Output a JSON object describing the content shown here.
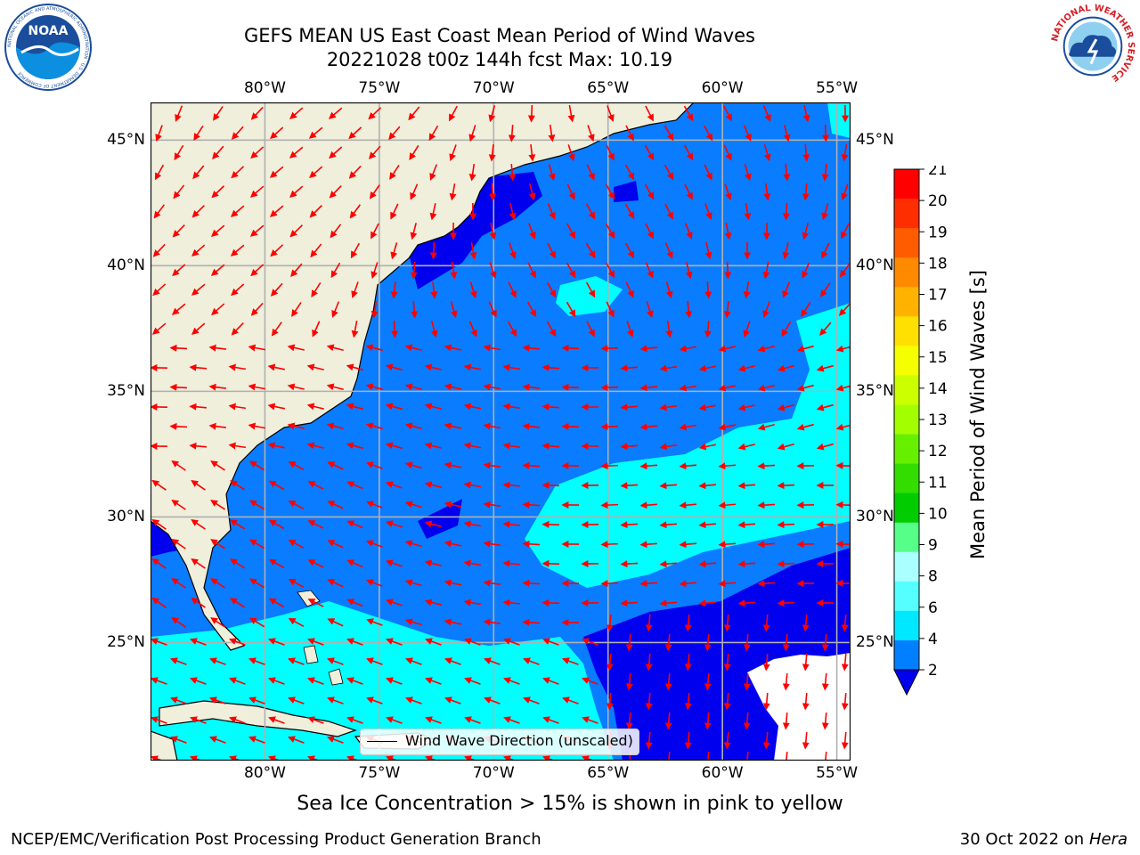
{
  "title": {
    "line1": "GEFS MEAN US East Coast Mean Period of Wind Waves",
    "line2": "20221028 t00z 144h fcst   Max: 10.19"
  },
  "logos": {
    "noaa": {
      "text": "NOAA",
      "ring_text": "NATIONAL OCEANIC AND ATMOSPHERIC ADMINISTRATION · U.S. DEPARTMENT OF COMMERCE",
      "color": "#1a4d9c"
    },
    "nws": {
      "ring_text": "NATIONAL WEATHER SERVICE",
      "color": "#d61f26"
    }
  },
  "map": {
    "lon_range": [
      -85,
      -54.4
    ],
    "lat_range": [
      20.3,
      46.5
    ],
    "lon_ticks": [
      "80°W",
      "75°W",
      "70°W",
      "65°W",
      "60°W",
      "55°W"
    ],
    "lat_ticks": [
      "45°N",
      "40°N",
      "35°N",
      "30°N",
      "25°N"
    ],
    "lon_tick_values": [
      -80,
      -75,
      -70,
      -65,
      -60,
      -55
    ],
    "lat_tick_values": [
      45,
      40,
      35,
      30,
      25
    ],
    "grid": true,
    "land_color": "#efefdc",
    "vector_color": "#ff0000",
    "legend": {
      "label": "Wind Wave Direction (unscaled)",
      "position": "bottom-center"
    }
  },
  "colorbar": {
    "label": "Mean Period of Wind Waves [s]",
    "ticks": [
      "21",
      "20",
      "19",
      "18",
      "17",
      "16",
      "15",
      "14",
      "13",
      "12",
      "11",
      "10",
      "9",
      "8",
      "6",
      "4",
      "2"
    ],
    "colors": [
      "#ff0000",
      "#ff2e00",
      "#ff5c00",
      "#ff8a00",
      "#ffb300",
      "#ffe000",
      "#f5ff00",
      "#ccff00",
      "#a3ff00",
      "#66f000",
      "#33dd00",
      "#00cc00",
      "#55ff88",
      "#aaffff",
      "#55ffff",
      "#00e8ff",
      "#0080ff"
    ],
    "extend_color": "#0000ee"
  },
  "footer": {
    "note": "Sea Ice Concentration > 15% is shown in pink to yellow",
    "left": "NCEP/EMC/Verification Post Processing Product Generation Branch",
    "right_prefix": "30 Oct 2022 on ",
    "right_host": "Hera"
  }
}
